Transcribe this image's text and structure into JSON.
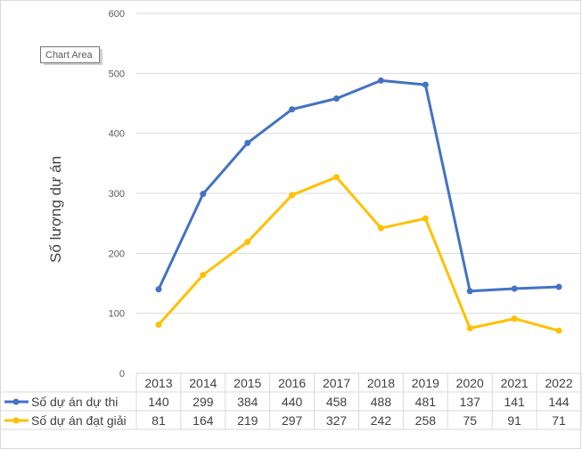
{
  "tooltip": "Chart Area",
  "chart_data": {
    "type": "line",
    "title": "",
    "xlabel": "",
    "ylabel": "Số lượng dự án",
    "ylim": [
      0,
      600
    ],
    "yticks": [
      "0",
      "100",
      "200",
      "300",
      "400",
      "500",
      "600"
    ],
    "categories": [
      "2013",
      "2014",
      "2015",
      "2016",
      "2017",
      "2018",
      "2019",
      "2020",
      "2021",
      "2022"
    ],
    "grid": true,
    "legend": "data-table-left",
    "series": [
      {
        "name": "Số dự án dự thi",
        "color": "#4472C4",
        "values": [
          140,
          299,
          384,
          440,
          458,
          488,
          481,
          137,
          141,
          144
        ]
      },
      {
        "name": "Số dự án đạt giải",
        "color": "#FFC000",
        "values": [
          81,
          164,
          219,
          297,
          327,
          242,
          258,
          75,
          91,
          71
        ]
      }
    ]
  }
}
